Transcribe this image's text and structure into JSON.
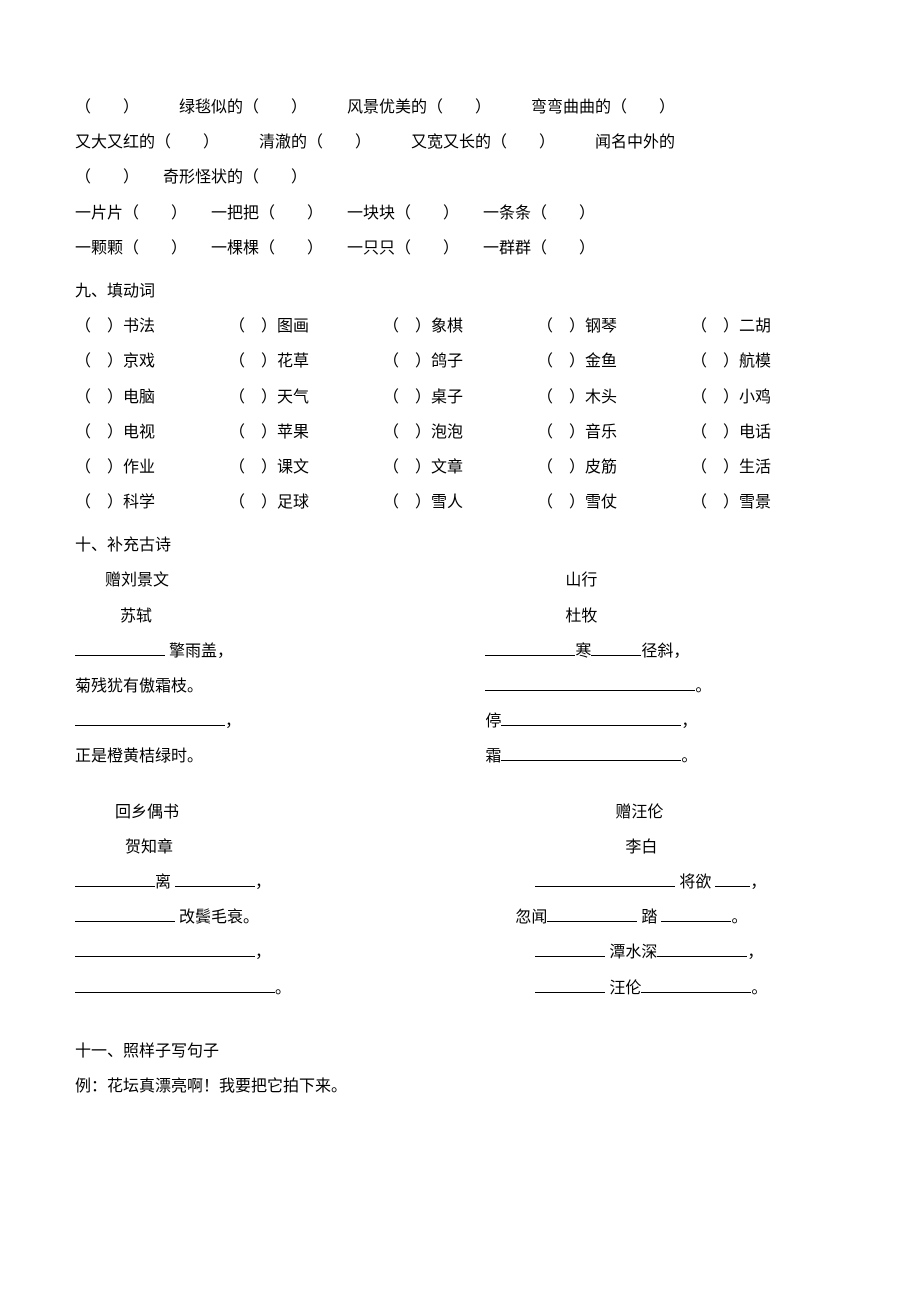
{
  "section8": {
    "phrases_line1": [
      "（　　）",
      "绿毯似的（　　）",
      "风景优美的（　　）",
      "弯弯曲曲的（　　）"
    ],
    "phrases_line2": [
      "又大又红的（　　）",
      "清澈的（　　）",
      "又宽又长的（　　）",
      "闻名中外的"
    ],
    "phrases_line3": [
      "（　　）",
      "奇形怪状的（　　）"
    ],
    "phrases_line4": [
      "一片片（　　）",
      "一把把（　　）",
      "一块块（　　）",
      "一条条（　　）"
    ],
    "phrases_line5": [
      "一颗颗（　　）",
      "一棵棵（　　）",
      "一只只（　　）",
      "一群群（　　）"
    ]
  },
  "section9": {
    "title": "九、填动词",
    "rows": [
      [
        "（　）书法",
        "（　）图画",
        "（　）象棋",
        "（　）钢琴",
        "（　）二胡"
      ],
      [
        "（　）京戏",
        "（　）花草",
        "（　）鸽子",
        "（　）金鱼",
        "（　）航模"
      ],
      [
        "（　）电脑",
        "（　）天气",
        "（　）桌子",
        "（　）木头",
        "（　）小鸡"
      ],
      [
        "（　）电视",
        "（　）苹果",
        "（　）泡泡",
        "（　）音乐",
        "（　）电话"
      ],
      [
        "（　）作业",
        "（　）课文",
        "（　）文章",
        "（　）皮筋",
        "（　）生活"
      ],
      [
        "（　）科学",
        "（　）足球",
        "（　）雪人",
        "（　）雪仗",
        "（　）雪景"
      ]
    ]
  },
  "section10": {
    "title": "十、补充古诗",
    "poems": [
      {
        "title": "赠刘景文",
        "author": "苏轼",
        "lines": [
          {
            "prefix": "",
            "blank_width": 90,
            "suffix": " 擎雨盖，"
          },
          {
            "text": "菊残犹有傲霜枝。"
          },
          {
            "prefix": "",
            "blank_width": 150,
            "suffix": "，"
          },
          {
            "text": "正是橙黄桔绿时。"
          }
        ]
      },
      {
        "title": "山行",
        "author": "杜牧",
        "lines": [
          {
            "parts": [
              {
                "blank": 90
              },
              {
                "text": "寒"
              },
              {
                "blank": 50
              },
              {
                "text": "径斜，"
              }
            ]
          },
          {
            "parts": [
              {
                "blank": 210
              },
              {
                "text": "。"
              }
            ]
          },
          {
            "parts": [
              {
                "text": "停"
              },
              {
                "blank": 180
              },
              {
                "text": "，"
              }
            ]
          },
          {
            "parts": [
              {
                "text": "霜"
              },
              {
                "blank": 180
              },
              {
                "text": "。"
              }
            ]
          }
        ]
      },
      {
        "title": "回乡偶书",
        "author": "贺知章",
        "lines": [
          {
            "parts": [
              {
                "blank": 80
              },
              {
                "text": "离 "
              },
              {
                "blank": 80
              },
              {
                "text": "，"
              }
            ]
          },
          {
            "parts": [
              {
                "blank": 100
              },
              {
                "text": " 改鬓毛衰。"
              }
            ]
          },
          {
            "parts": [
              {
                "blank": 180
              },
              {
                "text": "，"
              }
            ]
          },
          {
            "parts": [
              {
                "blank": 200
              },
              {
                "text": "。"
              }
            ]
          }
        ]
      },
      {
        "title": "赠汪伦",
        "author": "李白",
        "lines": [
          {
            "parts": [
              {
                "blank": 140
              },
              {
                "text": " 将欲 "
              },
              {
                "blank": 35
              },
              {
                "text": "，"
              }
            ]
          },
          {
            "parts": [
              {
                "text": "忽闻"
              },
              {
                "blank": 90
              },
              {
                "text": " 踏 "
              },
              {
                "blank": 70
              },
              {
                "text": "。"
              }
            ]
          },
          {
            "parts": [
              {
                "blank": 70
              },
              {
                "text": " 潭水深"
              },
              {
                "blank": 90
              },
              {
                "text": "，"
              }
            ]
          },
          {
            "parts": [
              {
                "blank": 70
              },
              {
                "text": " 汪伦"
              },
              {
                "blank": 110
              },
              {
                "text": "。"
              }
            ]
          }
        ]
      }
    ]
  },
  "section11": {
    "title": "十一、照样子写句子",
    "example": "例：花坛真漂亮啊！我要把它拍下来。"
  },
  "style": {
    "font_size": 16,
    "line_height": 2.2,
    "text_color": "#000000",
    "background_color": "#ffffff",
    "underline_color": "#000000"
  }
}
